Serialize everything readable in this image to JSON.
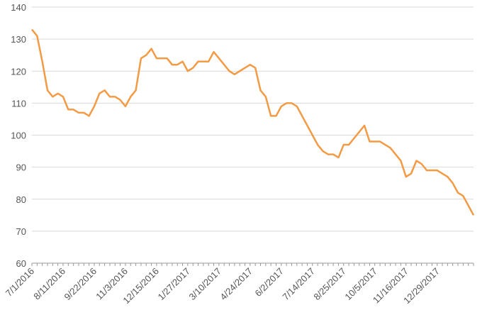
{
  "chart_data": {
    "type": "line",
    "categories": [
      "7/1/2016",
      null,
      null,
      null,
      null,
      null,
      "8/11/2016",
      null,
      null,
      null,
      null,
      null,
      "9/22/2016",
      null,
      null,
      null,
      null,
      null,
      "11/3/2016",
      null,
      null,
      null,
      null,
      null,
      "12/15/2016",
      null,
      null,
      null,
      null,
      null,
      "1/27/2017",
      null,
      null,
      null,
      null,
      null,
      "3/10/2017",
      null,
      null,
      null,
      null,
      null,
      "4/24/2017",
      null,
      null,
      null,
      null,
      null,
      "6/2/2017",
      null,
      null,
      null,
      null,
      null,
      "7/14/2017",
      null,
      null,
      null,
      null,
      null,
      "8/25/2017",
      null,
      null,
      null,
      null,
      null,
      "10/5/2017",
      null,
      null,
      null,
      null,
      null,
      "11/16/2017",
      null,
      null,
      null,
      null,
      null,
      "12/29/2017",
      null,
      null,
      null,
      null,
      null,
      null,
      null
    ],
    "values": [
      133,
      131,
      123,
      114,
      112,
      113,
      112,
      108,
      108,
      107,
      107,
      106,
      109,
      113,
      114,
      112,
      112,
      111,
      109,
      112,
      114,
      124,
      125,
      127,
      124,
      124,
      124,
      122,
      122,
      123,
      120,
      121,
      123,
      123,
      123,
      126,
      124,
      122,
      120,
      119,
      120,
      121,
      122,
      121,
      114,
      112,
      106,
      106,
      109,
      110,
      110,
      109,
      106,
      103,
      100,
      97,
      95,
      94,
      94,
      93,
      97,
      97,
      99,
      101,
      103,
      98,
      98,
      98,
      97,
      96,
      94,
      92,
      87,
      88,
      92,
      91,
      89,
      89,
      89,
      88,
      87,
      85,
      82,
      81,
      78,
      75
    ],
    "color": "#f39a45",
    "ylim": [
      60,
      140
    ],
    "yticks": [
      60,
      70,
      80,
      90,
      100,
      110,
      120,
      130,
      140
    ],
    "grid": true
  }
}
